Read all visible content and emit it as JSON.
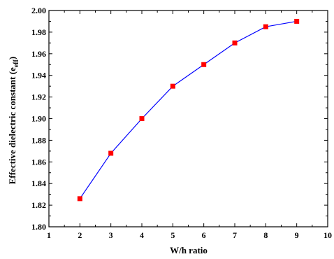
{
  "chart_data": {
    "type": "line",
    "title": "",
    "xlabel": "W/h ratio",
    "ylabel_main": "Effective dielectric constant (e",
    "ylabel_sub": "eff",
    "ylabel_close": ")",
    "xlim": [
      1,
      10
    ],
    "ylim": [
      1.8,
      2.0
    ],
    "x_ticks": [
      1,
      2,
      3,
      4,
      5,
      6,
      7,
      8,
      9,
      10
    ],
    "y_ticks": [
      1.8,
      1.82,
      1.84,
      1.86,
      1.88,
      1.9,
      1.92,
      1.94,
      1.96,
      1.98,
      2.0
    ],
    "y_tick_labels": [
      "1.80",
      "1.82",
      "1.84",
      "1.86",
      "1.88",
      "1.90",
      "1.92",
      "1.94",
      "1.96",
      "1.98",
      "2.00"
    ],
    "grid": false,
    "legend": false,
    "series": [
      {
        "x": [
          2,
          3,
          4,
          5,
          6,
          7,
          8,
          9
        ],
        "y": [
          1.826,
          1.868,
          1.9,
          1.93,
          1.95,
          1.97,
          1.985,
          1.99
        ],
        "line_color": "#0000ff",
        "marker_color": "#ff0000",
        "marker": "square"
      }
    ]
  }
}
